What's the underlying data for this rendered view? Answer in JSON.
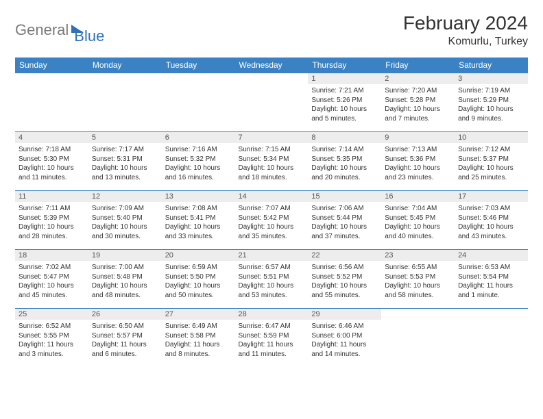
{
  "brand": {
    "part1": "General",
    "part2": "Blue"
  },
  "title": "February 2024",
  "location": "Komurlu, Turkey",
  "weekday_headers": [
    "Sunday",
    "Monday",
    "Tuesday",
    "Wednesday",
    "Thursday",
    "Friday",
    "Saturday"
  ],
  "header_bg": "#3a82c4",
  "header_fg": "#ffffff",
  "daynum_bg": "#ededed",
  "rule_color": "#3a82c4",
  "weeks": [
    [
      null,
      null,
      null,
      null,
      {
        "n": "1",
        "sr": "Sunrise: 7:21 AM",
        "ss": "Sunset: 5:26 PM",
        "dl": "Daylight: 10 hours and 5 minutes."
      },
      {
        "n": "2",
        "sr": "Sunrise: 7:20 AM",
        "ss": "Sunset: 5:28 PM",
        "dl": "Daylight: 10 hours and 7 minutes."
      },
      {
        "n": "3",
        "sr": "Sunrise: 7:19 AM",
        "ss": "Sunset: 5:29 PM",
        "dl": "Daylight: 10 hours and 9 minutes."
      }
    ],
    [
      {
        "n": "4",
        "sr": "Sunrise: 7:18 AM",
        "ss": "Sunset: 5:30 PM",
        "dl": "Daylight: 10 hours and 11 minutes."
      },
      {
        "n": "5",
        "sr": "Sunrise: 7:17 AM",
        "ss": "Sunset: 5:31 PM",
        "dl": "Daylight: 10 hours and 13 minutes."
      },
      {
        "n": "6",
        "sr": "Sunrise: 7:16 AM",
        "ss": "Sunset: 5:32 PM",
        "dl": "Daylight: 10 hours and 16 minutes."
      },
      {
        "n": "7",
        "sr": "Sunrise: 7:15 AM",
        "ss": "Sunset: 5:34 PM",
        "dl": "Daylight: 10 hours and 18 minutes."
      },
      {
        "n": "8",
        "sr": "Sunrise: 7:14 AM",
        "ss": "Sunset: 5:35 PM",
        "dl": "Daylight: 10 hours and 20 minutes."
      },
      {
        "n": "9",
        "sr": "Sunrise: 7:13 AM",
        "ss": "Sunset: 5:36 PM",
        "dl": "Daylight: 10 hours and 23 minutes."
      },
      {
        "n": "10",
        "sr": "Sunrise: 7:12 AM",
        "ss": "Sunset: 5:37 PM",
        "dl": "Daylight: 10 hours and 25 minutes."
      }
    ],
    [
      {
        "n": "11",
        "sr": "Sunrise: 7:11 AM",
        "ss": "Sunset: 5:39 PM",
        "dl": "Daylight: 10 hours and 28 minutes."
      },
      {
        "n": "12",
        "sr": "Sunrise: 7:09 AM",
        "ss": "Sunset: 5:40 PM",
        "dl": "Daylight: 10 hours and 30 minutes."
      },
      {
        "n": "13",
        "sr": "Sunrise: 7:08 AM",
        "ss": "Sunset: 5:41 PM",
        "dl": "Daylight: 10 hours and 33 minutes."
      },
      {
        "n": "14",
        "sr": "Sunrise: 7:07 AM",
        "ss": "Sunset: 5:42 PM",
        "dl": "Daylight: 10 hours and 35 minutes."
      },
      {
        "n": "15",
        "sr": "Sunrise: 7:06 AM",
        "ss": "Sunset: 5:44 PM",
        "dl": "Daylight: 10 hours and 37 minutes."
      },
      {
        "n": "16",
        "sr": "Sunrise: 7:04 AM",
        "ss": "Sunset: 5:45 PM",
        "dl": "Daylight: 10 hours and 40 minutes."
      },
      {
        "n": "17",
        "sr": "Sunrise: 7:03 AM",
        "ss": "Sunset: 5:46 PM",
        "dl": "Daylight: 10 hours and 43 minutes."
      }
    ],
    [
      {
        "n": "18",
        "sr": "Sunrise: 7:02 AM",
        "ss": "Sunset: 5:47 PM",
        "dl": "Daylight: 10 hours and 45 minutes."
      },
      {
        "n": "19",
        "sr": "Sunrise: 7:00 AM",
        "ss": "Sunset: 5:48 PM",
        "dl": "Daylight: 10 hours and 48 minutes."
      },
      {
        "n": "20",
        "sr": "Sunrise: 6:59 AM",
        "ss": "Sunset: 5:50 PM",
        "dl": "Daylight: 10 hours and 50 minutes."
      },
      {
        "n": "21",
        "sr": "Sunrise: 6:57 AM",
        "ss": "Sunset: 5:51 PM",
        "dl": "Daylight: 10 hours and 53 minutes."
      },
      {
        "n": "22",
        "sr": "Sunrise: 6:56 AM",
        "ss": "Sunset: 5:52 PM",
        "dl": "Daylight: 10 hours and 55 minutes."
      },
      {
        "n": "23",
        "sr": "Sunrise: 6:55 AM",
        "ss": "Sunset: 5:53 PM",
        "dl": "Daylight: 10 hours and 58 minutes."
      },
      {
        "n": "24",
        "sr": "Sunrise: 6:53 AM",
        "ss": "Sunset: 5:54 PM",
        "dl": "Daylight: 11 hours and 1 minute."
      }
    ],
    [
      {
        "n": "25",
        "sr": "Sunrise: 6:52 AM",
        "ss": "Sunset: 5:55 PM",
        "dl": "Daylight: 11 hours and 3 minutes."
      },
      {
        "n": "26",
        "sr": "Sunrise: 6:50 AM",
        "ss": "Sunset: 5:57 PM",
        "dl": "Daylight: 11 hours and 6 minutes."
      },
      {
        "n": "27",
        "sr": "Sunrise: 6:49 AM",
        "ss": "Sunset: 5:58 PM",
        "dl": "Daylight: 11 hours and 8 minutes."
      },
      {
        "n": "28",
        "sr": "Sunrise: 6:47 AM",
        "ss": "Sunset: 5:59 PM",
        "dl": "Daylight: 11 hours and 11 minutes."
      },
      {
        "n": "29",
        "sr": "Sunrise: 6:46 AM",
        "ss": "Sunset: 6:00 PM",
        "dl": "Daylight: 11 hours and 14 minutes."
      },
      null,
      null
    ]
  ]
}
